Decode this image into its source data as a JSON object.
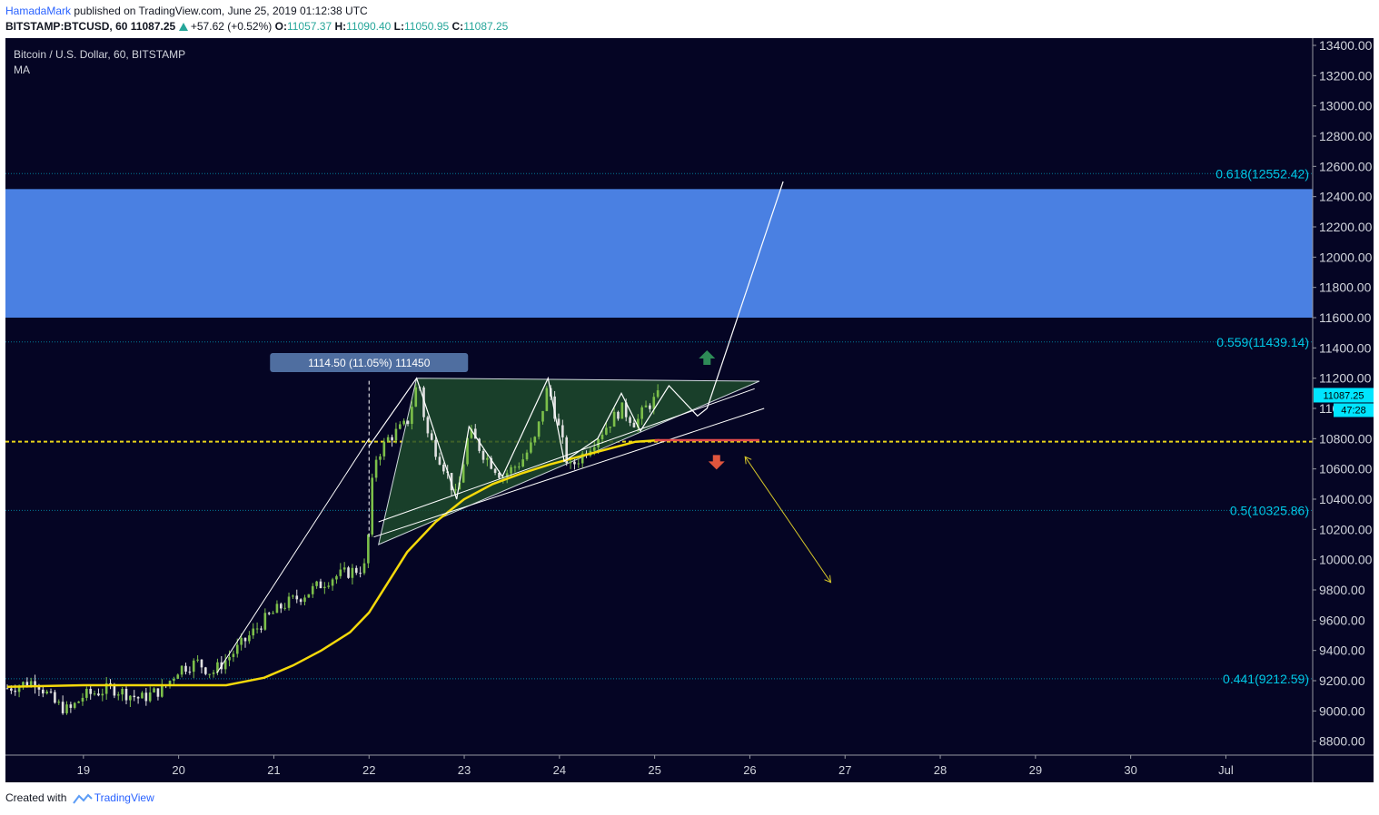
{
  "header": {
    "author": "HamadaMark",
    "published_text": "published on TradingView.com, June 25, 2019 01:12:38 UTC",
    "symbol": "BITSTAMP:BTCUSD, 60",
    "price": "11087.25",
    "change": "+57.62 (+0.52%)",
    "o_label": "O:",
    "o_value": "11057.37",
    "h_label": "H:",
    "h_value": "11090.40",
    "l_label": "L:",
    "l_value": "11050.95",
    "c_label": "C:",
    "c_value": "11087.25"
  },
  "footer": {
    "created_with": "Created with",
    "brand": "TradingView"
  },
  "colors": {
    "background": "#050524",
    "up": "#7cbf4a",
    "down": "#e0e0e0",
    "ma": "#f5d90a",
    "fib": "#00c8e6",
    "zone": "#4a80e2",
    "triangle_fill": "#1d4a2c",
    "dotted_line": "#e8d41a",
    "up_arrow": "#2e8b57",
    "down_arrow": "#e0553d"
  },
  "chart_data": {
    "type": "candlestick",
    "title": "Bitcoin / U.S. Dollar, 60, BITSTAMP",
    "indicator": "MA",
    "x_ticks": [
      "19",
      "20",
      "21",
      "22",
      "23",
      "24",
      "25",
      "26",
      "27",
      "28",
      "29",
      "30",
      "Jul"
    ],
    "x_range": [
      18.2,
      31.9
    ],
    "y_ticks": [
      8800,
      9000,
      9200,
      9400,
      9600,
      9800,
      10000,
      10200,
      10400,
      10600,
      10800,
      11000,
      11200,
      11400,
      11600,
      11800,
      12000,
      12200,
      12400,
      12600,
      12800,
      13000,
      13200,
      13400
    ],
    "y_tick_labels": [
      "8800.00",
      "9000.00",
      "9200.00",
      "9400.00",
      "9600.00",
      "9800.00",
      "10000.00",
      "10200.00",
      "10400.00",
      "10600.00",
      "10800.00",
      "11000.00",
      "11200.00",
      "11400.00",
      "11600.00",
      "11800.00",
      "12000.00",
      "12200.00",
      "12400.00",
      "12600.00",
      "12800.00",
      "13000.00",
      "13200.00",
      "13400.00"
    ],
    "y_range": [
      8700,
      13450
    ],
    "last_price": "11087.25",
    "countdown": "47:28",
    "fib_levels": [
      {
        "label": "0.618(12552.42)",
        "value": 12552.42
      },
      {
        "label": "0.559(11439.14)",
        "value": 11439.14
      },
      {
        "label": "0.5(10325.86)",
        "value": 10325.86
      },
      {
        "label": "0.441(9212.59)",
        "value": 9212.59
      }
    ],
    "resistance_zone": [
      11600,
      12450
    ],
    "dotted_level": 10780,
    "measure_label": "1114.50 (11.05%) 111450",
    "price_path": [
      [
        18.2,
        9150
      ],
      [
        18.5,
        9200
      ],
      [
        18.7,
        9050
      ],
      [
        18.85,
        9000
      ],
      [
        19.0,
        9100
      ],
      [
        19.3,
        9150
      ],
      [
        19.6,
        9080
      ],
      [
        19.85,
        9150
      ],
      [
        20.0,
        9280
      ],
      [
        20.2,
        9320
      ],
      [
        20.35,
        9250
      ],
      [
        20.6,
        9400
      ],
      [
        20.9,
        9600
      ],
      [
        21.1,
        9700
      ],
      [
        21.35,
        9780
      ],
      [
        21.6,
        9880
      ],
      [
        21.85,
        9930
      ],
      [
        21.95,
        9950
      ],
      [
        22.0,
        10200
      ],
      [
        22.05,
        10650
      ],
      [
        22.2,
        10800
      ],
      [
        22.4,
        10900
      ],
      [
        22.52,
        11200
      ],
      [
        22.6,
        10850
      ],
      [
        22.8,
        10600
      ],
      [
        22.92,
        10400
      ],
      [
        23.05,
        10850
      ],
      [
        23.2,
        10700
      ],
      [
        23.4,
        10550
      ],
      [
        23.6,
        10650
      ],
      [
        23.75,
        10800
      ],
      [
        23.88,
        11150
      ],
      [
        24.0,
        10850
      ],
      [
        24.1,
        10600
      ],
      [
        24.25,
        10700
      ],
      [
        24.45,
        10850
      ],
      [
        24.65,
        11000
      ],
      [
        24.8,
        10900
      ],
      [
        24.9,
        11000
      ],
      [
        25.05,
        11087.25
      ]
    ],
    "ma_path": [
      [
        18.2,
        9160
      ],
      [
        19.0,
        9170
      ],
      [
        19.5,
        9170
      ],
      [
        20.0,
        9170
      ],
      [
        20.5,
        9170
      ],
      [
        20.9,
        9220
      ],
      [
        21.2,
        9300
      ],
      [
        21.5,
        9400
      ],
      [
        21.8,
        9520
      ],
      [
        22.0,
        9650
      ],
      [
        22.2,
        9850
      ],
      [
        22.4,
        10050
      ],
      [
        22.7,
        10250
      ],
      [
        23.0,
        10400
      ],
      [
        23.3,
        10500
      ],
      [
        23.6,
        10570
      ],
      [
        23.9,
        10630
      ],
      [
        24.2,
        10680
      ],
      [
        24.5,
        10730
      ],
      [
        24.8,
        10780
      ],
      [
        25.05,
        10790
      ]
    ],
    "drawings": {
      "triangle": [
        [
          22.1,
          10100
        ],
        [
          22.5,
          11200
        ],
        [
          26.1,
          11180
        ]
      ],
      "support_lines": [
        [
          [
            22.05,
            10150
          ],
          [
            26.15,
            11000
          ]
        ],
        [
          [
            22.1,
            10250
          ],
          [
            26.05,
            11130
          ]
        ]
      ],
      "zigzag": [
        [
          22.0,
          10750
        ],
        [
          22.5,
          11200
        ],
        [
          22.92,
          10400
        ],
        [
          23.05,
          10880
        ],
        [
          23.4,
          10550
        ],
        [
          23.88,
          11200
        ],
        [
          24.05,
          10650
        ],
        [
          24.4,
          10800
        ],
        [
          24.65,
          11100
        ],
        [
          24.85,
          10850
        ],
        [
          25.15,
          11150
        ],
        [
          25.45,
          10950
        ],
        [
          25.55,
          11000
        ]
      ],
      "rise_line": [
        [
          20.4,
          9250
        ],
        [
          22.0,
          10800
        ]
      ],
      "bull_projection": [
        [
          25.55,
          11000
        ],
        [
          26.35,
          12500
        ]
      ],
      "bear_projection": [
        [
          25.95,
          10680
        ],
        [
          26.85,
          9850
        ]
      ],
      "dashed_vertical": [
        [
          22.0,
          10150
        ],
        [
          22.0,
          11200
        ]
      ],
      "red_segment": [
        [
          25.0,
          10790
        ],
        [
          26.1,
          10790
        ]
      ],
      "up_arrow": [
        25.55,
        11330
      ],
      "down_arrow": [
        25.65,
        10650
      ]
    }
  }
}
